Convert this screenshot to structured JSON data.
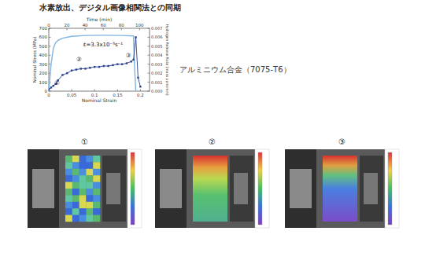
{
  "title": "水素放出、デジタル画像相関法との同期",
  "material": "アルミニウム合金（7075-T6）",
  "dic_images": [
    {
      "label": "①"
    },
    {
      "label": "②"
    },
    {
      "label": "③"
    }
  ],
  "chart_data": {
    "type": "line",
    "x_label": "Nominal Strain",
    "y_label": "Nominal Stress (MPa)",
    "y2_label": "Hydrogen Release Rate (mass ppm/min)",
    "xlim": [
      0,
      0.22
    ],
    "xticks": [
      0,
      0.05,
      0.1,
      0.15,
      0.2
    ],
    "ylim": [
      0,
      700
    ],
    "yticks": [
      0,
      100,
      200,
      300,
      400,
      500,
      600,
      700
    ],
    "y2lim": [
      0,
      0.007
    ],
    "y2ticks": [
      {
        "value": 0,
        "label": "0.000"
      },
      0.001,
      0.002,
      0.003,
      0.004,
      0.005,
      0.006,
      0.007
    ],
    "time_axis": {
      "label": "Time (min)",
      "lim": [
        0,
        111
      ],
      "ticks": [
        0,
        20,
        40,
        60,
        80,
        100
      ]
    },
    "annotations": [
      {
        "text": "ε̇=3.3x10⁻⁵s⁻¹",
        "x": 0.075,
        "y": 500
      },
      {
        "text": "①",
        "x": 0.012,
        "y": 70
      },
      {
        "text": "②",
        "x": 0.06,
        "y": 330
      },
      {
        "text": "③",
        "x": 0.168,
        "y": 380
      }
    ],
    "series": [
      {
        "name": "Nominal Stress",
        "color": "#7fb3e0",
        "line_style": "solid",
        "marker": "none",
        "x": [
          0,
          0.005,
          0.01,
          0.015,
          0.02,
          0.03,
          0.05,
          0.08,
          0.12,
          0.16,
          0.185,
          0.187,
          0.19
        ],
        "values": [
          0,
          300,
          480,
          540,
          565,
          590,
          610,
          620,
          622,
          620,
          615,
          300,
          0
        ]
      },
      {
        "name": "Hydrogen Release Rate",
        "color": "#2a3f8f",
        "axis": "y2",
        "line_style": "solid",
        "marker": "square",
        "x": [
          0,
          0.005,
          0.01,
          0.015,
          0.02,
          0.03,
          0.04,
          0.05,
          0.06,
          0.07,
          0.08,
          0.09,
          0.1,
          0.11,
          0.12,
          0.13,
          0.14,
          0.15,
          0.16,
          0.17,
          0.18,
          0.185,
          0.19,
          0.195,
          0.2
        ],
        "values": [
          0.0002,
          0.0004,
          0.0006,
          0.0008,
          0.0012,
          0.0018,
          0.002,
          0.0023,
          0.0024,
          0.0025,
          0.0025,
          0.0026,
          0.0027,
          0.0027,
          0.0028,
          0.0028,
          0.0029,
          0.003,
          0.003,
          0.0031,
          0.0033,
          0.0035,
          0.006,
          0.0015,
          0.0005
        ]
      }
    ]
  }
}
